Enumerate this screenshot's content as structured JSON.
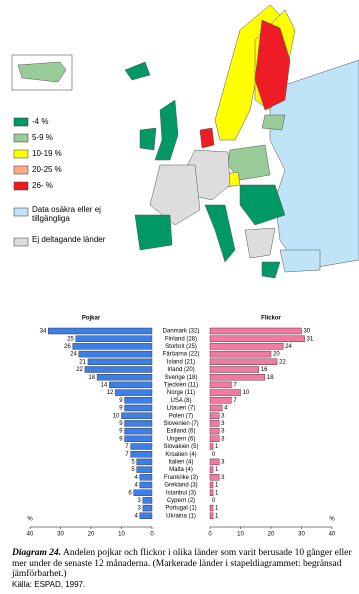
{
  "legend": {
    "items": [
      {
        "label": "-4 %",
        "color": "#009966"
      },
      {
        "label": "5-9 %",
        "color": "#99cc99"
      },
      {
        "label": "10-19 %",
        "color": "#ffff00"
      },
      {
        "label": "20-25 %",
        "color": "#ffaa88"
      },
      {
        "label": "26-   %",
        "color": "#ee1c24"
      },
      {
        "label": "Data osäkra eller ej tillgängliga",
        "color": "#bfe3f7"
      },
      {
        "label": "Ej deltagande länder",
        "color": "#dddddd"
      }
    ]
  },
  "chart_data": {
    "type": "bar",
    "orientation": "butterfly",
    "categories": [
      "Danmark (32)",
      "Finland (28)",
      "Storbrit (25)",
      "Färöarna (22)",
      "Island (21)",
      "Irland (20)",
      "Sverige (18)",
      "Tjeckien (11)",
      "Norge (11)",
      "USA (8)",
      "Litauen (7)",
      "Polen (7)",
      "Slovenien (7)",
      "Estland (6)",
      "Ungern (6)",
      "Slovakien (5)",
      "Kroatien (4)",
      "Italien (4)",
      "Malta (4)",
      "Frankrike (3)",
      "Grekland (3)",
      "Istanbul (3)",
      "Cypern (2)",
      "Portugal (1)",
      "Ukraina (1)"
    ],
    "limited": [
      false,
      false,
      false,
      false,
      false,
      false,
      false,
      false,
      false,
      true,
      false,
      false,
      false,
      false,
      false,
      false,
      false,
      false,
      false,
      true,
      true,
      false,
      false,
      false,
      false
    ],
    "series": [
      {
        "name": "Pojkar",
        "color": "#3d7fe6",
        "values": [
          34,
          25,
          26,
          24,
          21,
          22,
          18,
          14,
          12,
          9,
          9,
          10,
          9,
          9,
          9,
          7,
          7,
          5,
          5,
          4,
          4,
          6,
          3,
          3,
          4
        ]
      },
      {
        "name": "Flickor",
        "color": "#f07aa0",
        "values": [
          30,
          31,
          24,
          20,
          22,
          16,
          18,
          7,
          10,
          7,
          4,
          3,
          3,
          3,
          3,
          1,
          0,
          3,
          1,
          3,
          1,
          1,
          0,
          1,
          1
        ]
      }
    ],
    "xlim": [
      0,
      40
    ],
    "xticks": [
      0,
      10,
      20,
      30,
      40
    ],
    "xlabel": "%"
  },
  "caption": {
    "label": "Diagram 24.",
    "text": "Andelen pojkar och flickor i olika länder som varit berusade 10 gånger eller mer under de senaste 12 månaderna. (Markerade länder i stapeldiagrammet: begränsad jämförbarhet.)",
    "source": "Källa: ESPAD, 1997."
  }
}
